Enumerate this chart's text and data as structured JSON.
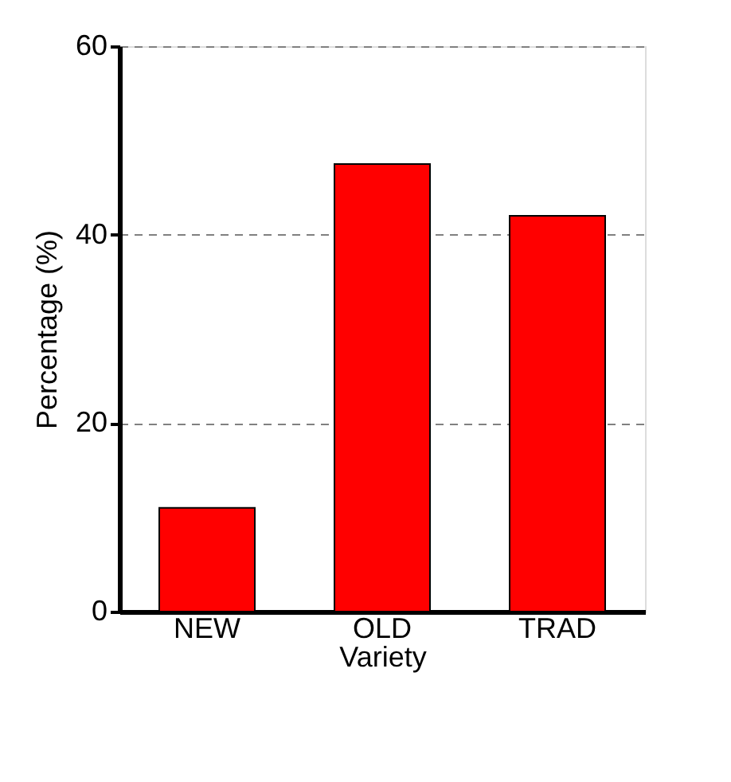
{
  "chart_data": {
    "type": "bar",
    "xlabel": "Variety",
    "ylabel": "Percentage (%)",
    "categories": [
      "NEW",
      "OLD",
      "TRAD"
    ],
    "values": [
      11,
      47.5,
      42
    ],
    "color": "#ff0000",
    "ylim": [
      0,
      60
    ],
    "yticks": [
      0,
      20,
      40,
      60
    ],
    "grid": "y",
    "line_style": "dashed"
  }
}
